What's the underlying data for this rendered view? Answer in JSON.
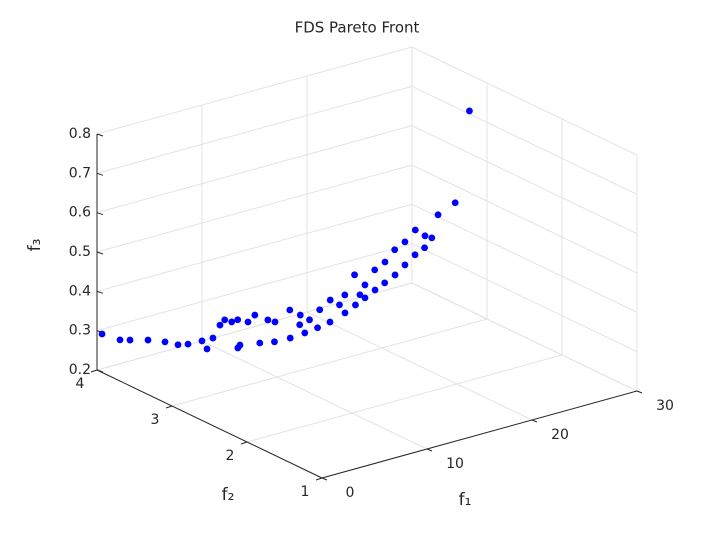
{
  "chart_data": {
    "type": "scatter3d",
    "title": "FDS Pareto Front",
    "xlabel": "f₁",
    "ylabel": "f₂",
    "zlabel": "f₃",
    "color": "#0000ff",
    "grid": true,
    "xlim": [
      0,
      30
    ],
    "xticks": [
      0,
      10,
      20,
      30
    ],
    "ylim": [
      1,
      4
    ],
    "yticks": [
      1,
      2,
      3,
      4
    ],
    "zlim": [
      0.2,
      0.8
    ],
    "zticks": [
      0.2,
      0.3,
      0.4,
      0.5,
      0.6,
      0.7,
      0.8
    ],
    "x": [
      0.48,
      1.12,
      1.36,
      2.0,
      2.55,
      3.07,
      3.31,
      3.57,
      4.05,
      3.9,
      7.14,
      7.59,
      7.76,
      7.9,
      8.24,
      9.03,
      6.34,
      9.2,
      9.38,
      10.79,
      10.79,
      11.24,
      12.14,
      13.0,
      14.03,
      15.17,
      15.52,
      16.52,
      17.14,
      18.28,
      18.9,
      20.03,
      20.38,
      21.34,
      22.9,
      27.9,
      6.83,
      7.79,
      8.83,
      9.76,
      10.79,
      11.72,
      12.69,
      13.76,
      14.9,
      15.38,
      16.48,
      16.97,
      18.1,
      18.97,
      19.86,
      20.34,
      21.03,
      10.52,
      13.45,
      14.97
    ],
    "y": [
      4.0,
      3.85,
      3.75,
      3.6,
      3.45,
      3.35,
      3.25,
      3.1,
      3.1,
      3.0,
      3.36,
      3.36,
      3.29,
      3.23,
      3.14,
      3.16,
      3.01,
      3.01,
      2.94,
      2.94,
      2.8,
      2.74,
      2.73,
      2.71,
      2.66,
      2.69,
      2.6,
      2.61,
      2.56,
      2.59,
      2.54,
      2.56,
      2.48,
      2.44,
      2.43,
      2.94,
      3.05,
      2.92,
      2.87,
      2.79,
      2.74,
      2.7,
      2.67,
      2.62,
      2.64,
      2.58,
      2.6,
      2.54,
      2.56,
      2.55,
      2.54,
      2.48,
      2.48,
      2.77,
      2.65,
      2.59
    ],
    "z": [
      0.288,
      0.282,
      0.289,
      0.298,
      0.303,
      0.301,
      0.31,
      0.33,
      0.306,
      0.344,
      0.32,
      0.33,
      0.33,
      0.34,
      0.34,
      0.35,
      0.3,
      0.35,
      0.35,
      0.37,
      0.37,
      0.36,
      0.38,
      0.4,
      0.41,
      0.45,
      0.43,
      0.46,
      0.48,
      0.5,
      0.52,
      0.54,
      0.53,
      0.58,
      0.6,
      0.75,
      0.3,
      0.31,
      0.31,
      0.32,
      0.33,
      0.34,
      0.35,
      0.37,
      0.38,
      0.4,
      0.41,
      0.43,
      0.44,
      0.46,
      0.48,
      0.5,
      0.52,
      0.35,
      0.39,
      0.41
    ]
  }
}
